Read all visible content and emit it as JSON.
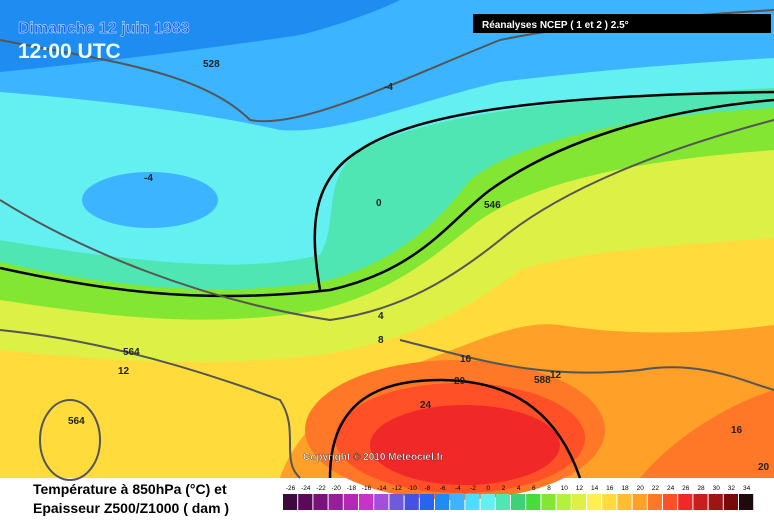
{
  "header": {
    "date": "Dimanche 12 juin 1983",
    "time": "12:00 UTC",
    "source": "Réanalyses NCEP ( 1 et 2 ) 2.5°"
  },
  "map": {
    "copyright": "Copyright © 2010 Meteociel.fr",
    "contour_labels": [
      528,
      -4,
      -4,
      0,
      546,
      4,
      8,
      564,
      12,
      564,
      16,
      20,
      24,
      588,
      12,
      16,
      20
    ]
  },
  "legend": {
    "title_lines": [
      "Température à 850hPa (°C) et",
      "Epaisseur Z500/Z1000 ( dam )"
    ],
    "scale": [
      -26,
      -24,
      -22,
      -20,
      -18,
      -16,
      -14,
      -12,
      -10,
      -8,
      -6,
      -4,
      -2,
      0,
      2,
      4,
      6,
      8,
      10,
      12,
      14,
      16,
      18,
      20,
      22,
      24,
      26,
      28,
      30,
      32,
      34
    ],
    "colors": [
      "#3c0a3c",
      "#5a0a5a",
      "#781478",
      "#961e96",
      "#b428b4",
      "#c832c8",
      "#a050dc",
      "#6e5adc",
      "#4650e6",
      "#2864f0",
      "#1e8cf0",
      "#3cb4ff",
      "#50dcff",
      "#64f0f0",
      "#50e6b4",
      "#3cd278",
      "#46dc3c",
      "#82e632",
      "#b4f03c",
      "#dcf046",
      "#fff050",
      "#ffdc3c",
      "#ffbe32",
      "#ffa028",
      "#ff7828",
      "#ff5028",
      "#f02828",
      "#c81e1e",
      "#a01414",
      "#780a0a",
      "#1e0a0a"
    ]
  }
}
